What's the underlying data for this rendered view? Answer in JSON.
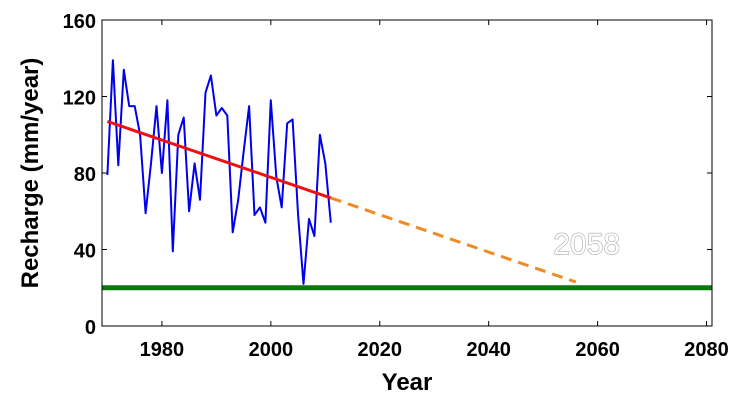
{
  "chart_data": {
    "type": "line",
    "xlabel": "Year",
    "ylabel": "Recharge (mm/year)",
    "xlim": [
      1969,
      2081
    ],
    "ylim": [
      0,
      160
    ],
    "x_ticks": [
      1980,
      2000,
      2020,
      2040,
      2060,
      2080
    ],
    "y_ticks": [
      0,
      40,
      80,
      120,
      160
    ],
    "grid": false,
    "series": [
      {
        "color": "#0000ee",
        "style": "solid",
        "x": [
          1970,
          1971,
          1972,
          1973,
          1974,
          1975,
          1976,
          1977,
          1978,
          1979,
          1980,
          1981,
          1982,
          1983,
          1984,
          1985,
          1986,
          1987,
          1988,
          1989,
          1990,
          1991,
          1992,
          1993,
          1994,
          1995,
          1996,
          1997,
          1998,
          1999,
          2000,
          2001,
          2002,
          2003,
          2004,
          2005,
          2006,
          2007,
          2008,
          2009,
          2010,
          2011
        ],
        "y": [
          79,
          139,
          84,
          134,
          115,
          115,
          100,
          59,
          85,
          115,
          80,
          118,
          39,
          100,
          109,
          60,
          85,
          66,
          122,
          131,
          110,
          114,
          110,
          49,
          66,
          91,
          115,
          58,
          62,
          54,
          118,
          78,
          62,
          106,
          108,
          58,
          22,
          56,
          47,
          100,
          85,
          54
        ]
      },
      {
        "color": "#ee1111",
        "style": "solid",
        "x": [
          1970,
          2011
        ],
        "y": [
          107,
          67
        ]
      },
      {
        "color": "#f08a24",
        "style": "dashed",
        "x": [
          2011,
          2056
        ],
        "y": [
          67,
          23
        ]
      },
      {
        "color": "#0a7a0a",
        "style": "solid",
        "x": [
          1969,
          2081
        ],
        "y": [
          20,
          20
        ]
      }
    ],
    "annotations": [
      {
        "text": "2058",
        "x": 2058,
        "y": 44
      }
    ]
  }
}
